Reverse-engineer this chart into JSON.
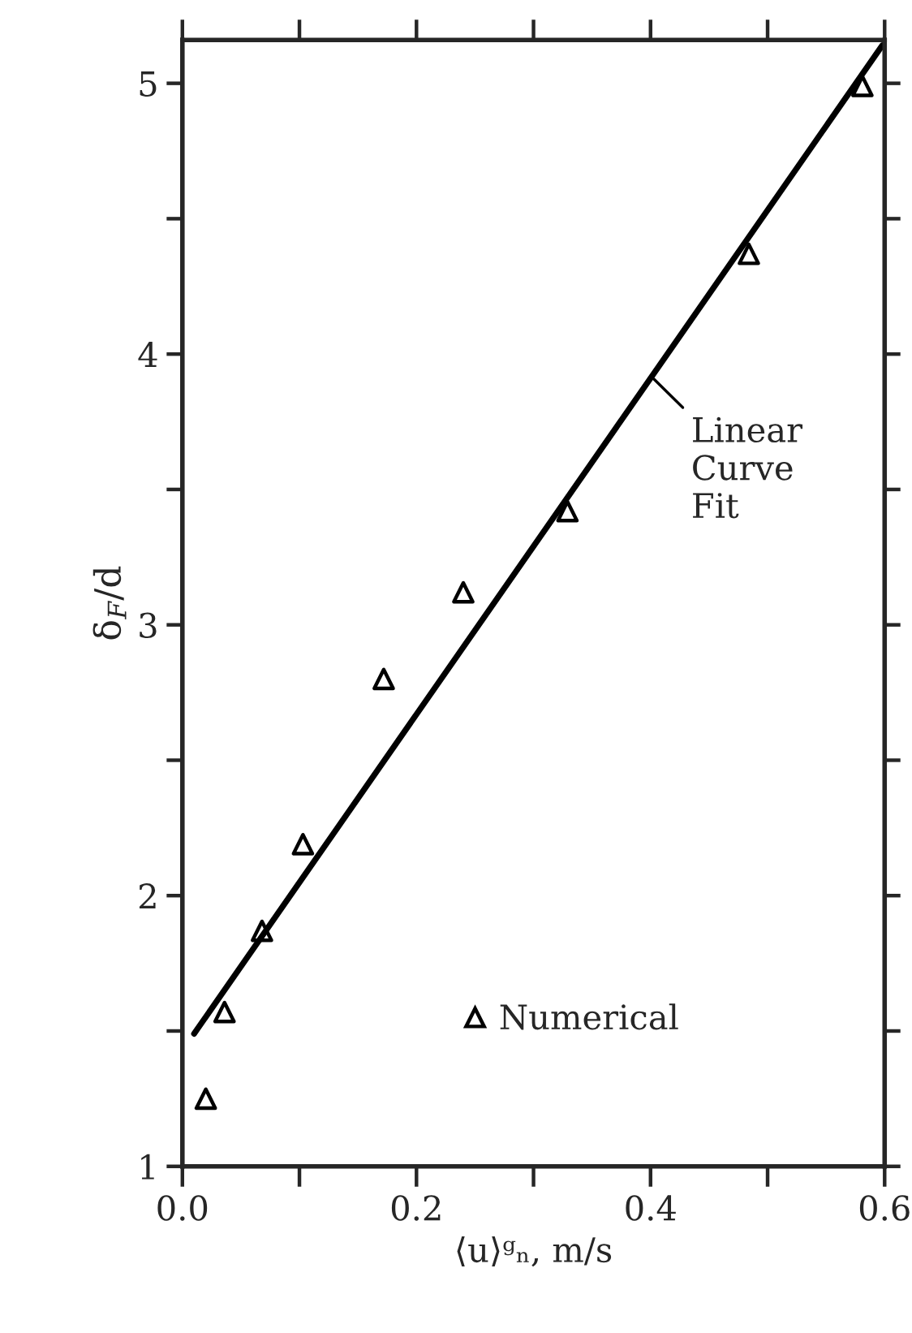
{
  "chart_data": {
    "type": "scatter",
    "xlabel": "⟨u⟩ᵍₙ, m/s",
    "ylabel": "δ$_{F}$/d",
    "xlim": [
      0,
      0.6
    ],
    "ylim": [
      1,
      5.16
    ],
    "xticks": [
      {
        "value": 0,
        "label": "0.0"
      },
      {
        "value": 0.1,
        "label": null
      },
      {
        "value": 0.2,
        "label": "0.2"
      },
      {
        "value": 0.3,
        "label": null
      },
      {
        "value": 0.4,
        "label": "0.4"
      },
      {
        "value": 0.5,
        "label": null
      },
      {
        "value": 0.6,
        "label": "0.6"
      }
    ],
    "yticks": [
      1,
      {
        "value": 1.5,
        "label": null
      },
      2,
      {
        "value": 2.5,
        "label": null
      },
      3,
      {
        "value": 3.5,
        "label": null
      },
      4,
      {
        "value": 4.5,
        "label": null
      },
      5
    ],
    "series": [
      {
        "name": "Numerical",
        "color": "#000000",
        "marker": "triangle",
        "x": [
          0.02,
          0.036,
          0.068,
          0.103,
          0.172,
          0.24,
          0.329,
          0.484,
          0.581
        ],
        "values": [
          1.25,
          1.57,
          1.87,
          2.19,
          2.8,
          3.12,
          3.42,
          4.37,
          4.99
        ]
      },
      {
        "type": "line",
        "color": "#000000",
        "line_style": "solid",
        "x": [
          0.01,
          0.598
        ],
        "values": [
          1.49,
          5.14
        ]
      }
    ],
    "annotations": [
      {
        "text": "Linear\nCurve\nFit",
        "x": 0.4,
        "y": 3.92
      }
    ],
    "legend": "bottom",
    "grid": false
  }
}
